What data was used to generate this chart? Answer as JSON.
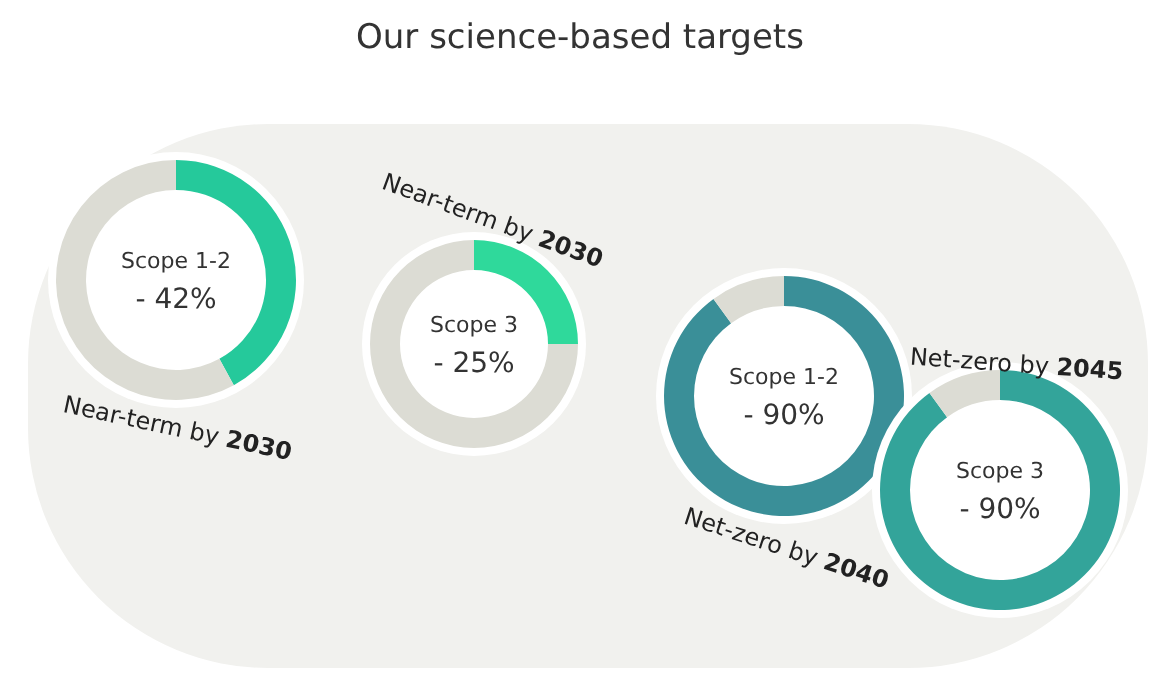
{
  "chart_data": [
    {
      "type": "donut",
      "title": "Our science-based targets",
      "categories": [
        null,
        null
      ],
      "values": [
        42,
        58
      ],
      "colors": [
        "#25c99b",
        "#dcdcd4"
      ],
      "annotations": [
        "Scope 1-2",
        "- 42%",
        "Near-term by 2030"
      ]
    },
    {
      "type": "donut",
      "categories": [
        null,
        null
      ],
      "values": [
        25,
        75
      ],
      "colors": [
        "#2fd99b",
        "#dcdcd4"
      ],
      "annotations": [
        "Scope 3",
        "- 25%",
        "Near-term by 2030"
      ]
    },
    {
      "type": "donut",
      "categories": [
        null,
        null
      ],
      "values": [
        90,
        10
      ],
      "colors": [
        "#3a8f98",
        "#dcdcd4"
      ],
      "annotations": [
        "Scope 1-2",
        "- 90%",
        "Net-zero by 2040"
      ]
    },
    {
      "type": "donut",
      "categories": [
        null,
        null
      ],
      "values": [
        90,
        10
      ],
      "colors": [
        "#33a49a",
        "#dcdcd4"
      ],
      "annotations": [
        "Scope 3",
        "- 90%",
        "Net-zero by 2045"
      ]
    }
  ]
}
